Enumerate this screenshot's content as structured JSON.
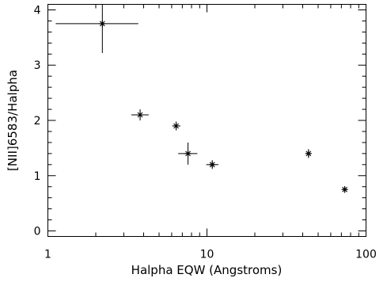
{
  "chart_data": {
    "type": "scatter",
    "title": "",
    "xlabel": "Halpha EQW (Angstroms)",
    "ylabel": "[NII]6583/Halpha",
    "xscale": "log",
    "xlim": [
      1,
      100
    ],
    "ylim": [
      -0.1,
      4.1
    ],
    "grid": false,
    "legend": "none",
    "marker": "asterisk",
    "color": "#000000",
    "x_ticks": [
      {
        "value": 1,
        "label": "1"
      },
      {
        "value": 10,
        "label": "10"
      },
      {
        "value": 100,
        "label": "100"
      }
    ],
    "y_ticks": [
      {
        "value": 0,
        "label": "0"
      },
      {
        "value": 1,
        "label": "1"
      },
      {
        "value": 2,
        "label": "2"
      },
      {
        "value": 3,
        "label": "3"
      },
      {
        "value": 4,
        "label": "4"
      }
    ],
    "points": [
      {
        "x": 2.2,
        "y": 3.75,
        "x_err": [
          1.12,
          3.7
        ],
        "y_err": [
          3.22,
          4.1
        ]
      },
      {
        "x": 3.8,
        "y": 2.1,
        "x_err": [
          3.35,
          4.3
        ],
        "y_err": [
          2.0,
          2.2
        ]
      },
      {
        "x": 6.4,
        "y": 1.9,
        "x_err": [
          6.05,
          6.8
        ],
        "y_err": [
          1.82,
          1.98
        ]
      },
      {
        "x": 7.6,
        "y": 1.4,
        "x_err": [
          6.6,
          8.7
        ],
        "y_err": [
          1.2,
          1.6
        ]
      },
      {
        "x": 10.8,
        "y": 1.2,
        "x_err": [
          9.9,
          11.8
        ],
        "y_err": [
          1.12,
          1.28
        ]
      },
      {
        "x": 43.5,
        "y": 1.4,
        "x_err": [
          42.0,
          45.0
        ],
        "y_err": [
          1.32,
          1.48
        ]
      },
      {
        "x": 73.5,
        "y": 0.75,
        "x_err": [
          71.0,
          76.0
        ],
        "y_err": [
          0.69,
          0.81
        ]
      }
    ]
  }
}
